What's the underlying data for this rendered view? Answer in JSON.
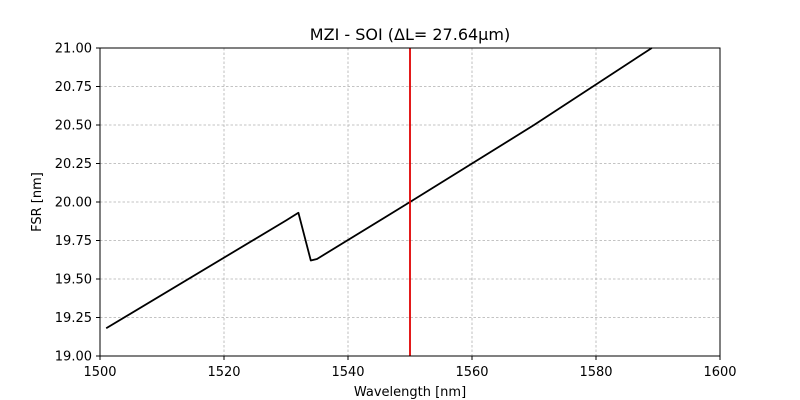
{
  "chart_data": {
    "type": "line",
    "title": "MZI - SOI (ΔL= 27.64μm)",
    "xlabel": "Wavelength [nm]",
    "ylabel": "FSR [nm]",
    "xlim": [
      1500,
      1600
    ],
    "ylim": [
      19.0,
      21.0
    ],
    "xticks": [
      1500,
      1520,
      1540,
      1560,
      1580,
      1600
    ],
    "xtick_labels": [
      "1500",
      "1520",
      "1540",
      "1560",
      "1580",
      "1600"
    ],
    "yticks": [
      19.0,
      19.25,
      19.5,
      19.75,
      20.0,
      20.25,
      20.5,
      20.75,
      21.0
    ],
    "ytick_labels": [
      "19.00",
      "19.25",
      "19.50",
      "19.75",
      "20.00",
      "20.25",
      "20.50",
      "20.75",
      "21.00"
    ],
    "grid": true,
    "series": [
      {
        "color": "#000000",
        "x": [
          1501,
          1530,
          1532,
          1534,
          1535,
          1550,
          1570,
          1589
        ],
        "y": [
          19.18,
          19.88,
          19.93,
          19.62,
          19.63,
          20.0,
          20.5,
          21.0
        ]
      }
    ],
    "vlines": [
      {
        "x": 1550,
        "color": "#e00000"
      }
    ]
  }
}
